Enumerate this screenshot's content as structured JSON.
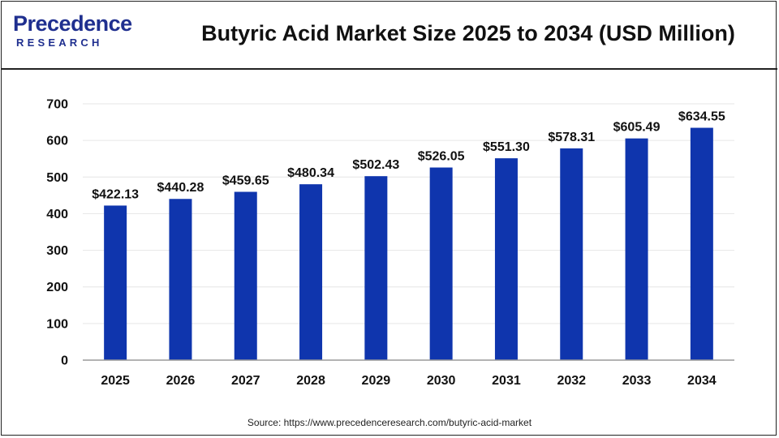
{
  "header": {
    "logo_word": "recedence",
    "logo_initial": "P",
    "logo_sub": "RESEARCH",
    "title": "Butyric Acid Market Size 2025 to 2034 (USD Million)"
  },
  "colors": {
    "bar": "#0f35ad",
    "grid": "#e6e6e6",
    "axis": "#9a9a9a",
    "brand": "#1f2f8f"
  },
  "chart_data": {
    "type": "bar",
    "title": "Butyric Acid Market Size 2025 to 2034 (USD Million)",
    "categories": [
      "2025",
      "2026",
      "2027",
      "2028",
      "2029",
      "2030",
      "2031",
      "2032",
      "2033",
      "2034"
    ],
    "values": [
      422.13,
      440.28,
      459.65,
      480.34,
      502.43,
      526.05,
      551.3,
      578.31,
      605.49,
      634.55
    ],
    "data_labels": [
      "$422.13",
      "$440.28",
      "$459.65",
      "$480.34",
      "$502.43",
      "$526.05",
      "$551.30",
      "$578.31",
      "$605.49",
      "$634.55"
    ],
    "ylim": [
      0,
      700
    ],
    "yticks": [
      0,
      100,
      200,
      300,
      400,
      500,
      600,
      700
    ],
    "xlabel": "",
    "ylabel": "",
    "grid": true
  },
  "footer": {
    "source": "Source: https://www.precedenceresearch.com/butyric-acid-market"
  }
}
